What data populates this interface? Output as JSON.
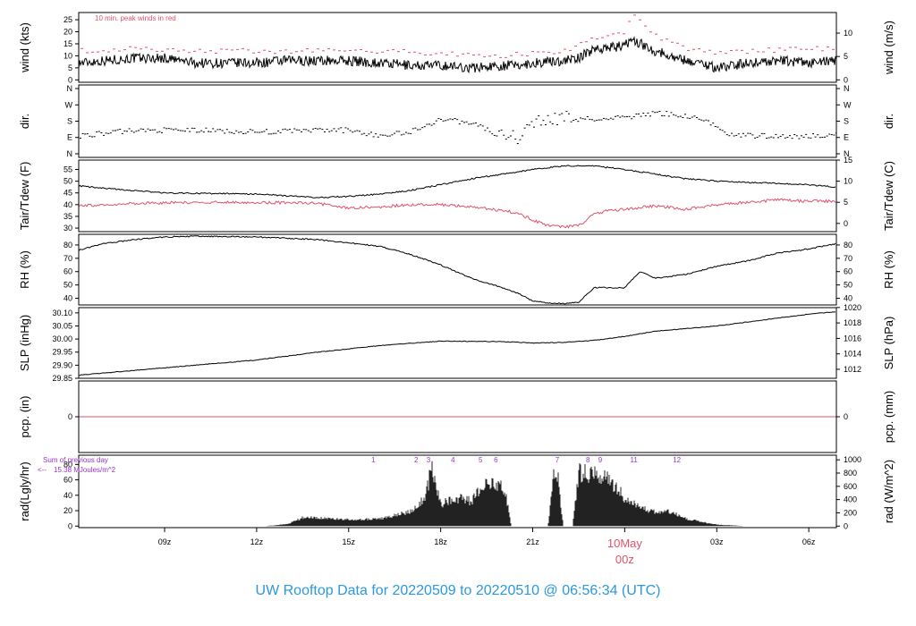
{
  "title": "UW Rooftop Data for 20220509  to  20220510 @ 06:56:34  (UTC)",
  "colors": {
    "trace": "#000000",
    "peak": "#DF536B",
    "dewpoint": "#DF536B",
    "pcp": "#DF536B",
    "annotation": "#9933CC",
    "title": "#2B98DF",
    "date_label": "#DF536B"
  },
  "x_axis": {
    "ticks": [
      "09z",
      "12z",
      "15z",
      "18z",
      "21z",
      "00z",
      "03z",
      "06z"
    ],
    "tick_hours": [
      9,
      12,
      15,
      18,
      21,
      24,
      27,
      30
    ],
    "date_label": "10May",
    "range_hours": [
      6.2,
      30.9
    ]
  },
  "chart_data": [
    {
      "type": "line",
      "panel": "wind",
      "ylabel": "wind (kts)",
      "ylabel_right": "wind (m/s)",
      "y_ticks": [
        "0",
        "5",
        "10",
        "15",
        "20",
        "25"
      ],
      "y_ticks_right": [
        "0",
        "5",
        "10"
      ],
      "ylim": [
        -1,
        28
      ],
      "annotation": "10 min. peak winds in red",
      "series": [
        {
          "name": "wind speed",
          "x": [
            6.2,
            7,
            8,
            9,
            10,
            11,
            12,
            13,
            14,
            15,
            16,
            17,
            18,
            19,
            20,
            20.5,
            21,
            22,
            22.5,
            23,
            24,
            24.2,
            25,
            26,
            26.5,
            27,
            28,
            29,
            30,
            30.9
          ],
          "y": [
            7,
            8,
            9,
            9,
            7,
            7,
            7,
            8,
            8,
            8,
            7,
            6,
            6,
            5,
            6,
            6,
            7,
            8,
            9,
            13,
            14,
            17,
            12,
            8,
            7,
            5,
            7,
            8,
            7,
            8
          ]
        },
        {
          "name": "peak gust",
          "x": [
            6.2,
            8,
            10,
            12,
            14,
            16,
            18,
            20,
            21,
            22,
            23,
            24,
            24.2,
            25,
            26,
            27,
            28,
            30,
            30.9
          ],
          "y": [
            12,
            13,
            12,
            12,
            12,
            12,
            11,
            10,
            11,
            12,
            17,
            20,
            27,
            18,
            13,
            11,
            12,
            13,
            13
          ]
        }
      ]
    },
    {
      "type": "scatter",
      "panel": "direction",
      "ylabel": "dir.",
      "ylabel_right": "dir.",
      "y_ticks": [
        "N",
        "E",
        "S",
        "W",
        "N"
      ],
      "ylim": [
        -20,
        380
      ],
      "series": [
        {
          "name": "direction (deg)",
          "x": [
            6.2,
            8,
            10,
            12,
            14,
            15,
            16,
            17,
            17.5,
            18,
            19,
            20,
            20.5,
            21,
            22,
            23,
            24,
            25,
            26,
            26.5,
            27.5,
            29,
            30,
            30.9
          ],
          "y": [
            100,
            130,
            130,
            120,
            130,
            130,
            100,
            120,
            160,
            190,
            170,
            100,
            90,
            170,
            200,
            190,
            200,
            225,
            210,
            190,
            100,
            100,
            95,
            110
          ]
        }
      ]
    },
    {
      "type": "line",
      "panel": "temperature",
      "ylabel": "Tair/Tdew (F)",
      "ylabel_right": "Tair/Tdew (C)",
      "y_ticks": [
        "30",
        "35",
        "40",
        "45",
        "50",
        "55"
      ],
      "y_ticks_right": [
        "0",
        "5",
        "10",
        "15"
      ],
      "ylim": [
        28.5,
        59
      ],
      "series": [
        {
          "name": "air temperature",
          "x": [
            6.2,
            7,
            9,
            12,
            14,
            15,
            16,
            17,
            18,
            19,
            20,
            21,
            22,
            23,
            24,
            25,
            26,
            27,
            28,
            29,
            30,
            30.9
          ],
          "y": [
            48,
            47,
            45,
            44.5,
            43,
            43.5,
            44.5,
            46,
            48.5,
            51,
            53,
            55,
            56.5,
            56.5,
            55,
            53,
            51,
            50,
            49.5,
            49,
            48.5,
            47.5
          ]
        },
        {
          "name": "dew point",
          "x": [
            6.2,
            8,
            10,
            12,
            14,
            15,
            16,
            17,
            18,
            19,
            20,
            20.5,
            21,
            21.5,
            22,
            22.5,
            23,
            23.5,
            24,
            25,
            26,
            27,
            28,
            29,
            30,
            30.9
          ],
          "y": [
            39.5,
            40.5,
            41,
            41,
            40.5,
            38.5,
            39,
            40,
            40,
            39,
            37.5,
            36.5,
            33.5,
            31,
            30.5,
            31,
            36,
            37.5,
            38,
            39.5,
            38,
            40,
            41,
            42,
            41.5,
            41.5
          ]
        }
      ]
    },
    {
      "type": "line",
      "panel": "humidity",
      "ylabel": "RH (%)",
      "ylabel_right": "RH (%)",
      "y_ticks": [
        "40",
        "50",
        "60",
        "70",
        "80"
      ],
      "ylim": [
        35,
        88
      ],
      "series": [
        {
          "name": "relative humidity",
          "x": [
            6.2,
            7,
            8,
            9,
            10,
            12,
            14,
            16,
            17,
            18,
            19,
            20,
            20.5,
            21,
            21.5,
            22,
            22.5,
            23,
            24,
            24.5,
            25,
            26,
            27,
            28,
            29,
            30,
            30.9
          ],
          "y": [
            76,
            81,
            84,
            86,
            86.5,
            86,
            84,
            79,
            73,
            65,
            55,
            48,
            44,
            38,
            36.5,
            36,
            37,
            48,
            48,
            60,
            55,
            58,
            64,
            68,
            74,
            77,
            81
          ]
        }
      ]
    },
    {
      "type": "line",
      "panel": "pressure",
      "ylabel": "SLP (inHg)",
      "ylabel_right": "SLP (hPa)",
      "y_ticks": [
        "29.85",
        "29.90",
        "29.95",
        "30.00",
        "30.05",
        "30.10"
      ],
      "y_ticks_right": [
        "1012",
        "1014",
        "1016",
        "1018",
        "1020"
      ],
      "ylim": [
        29.85,
        30.12
      ],
      "series": [
        {
          "name": "sea level pressure",
          "x": [
            6.2,
            8,
            10,
            12,
            14,
            16,
            18,
            20,
            21,
            22,
            23,
            24,
            25,
            26,
            27,
            28,
            29,
            30,
            30.9
          ],
          "y": [
            29.862,
            29.88,
            29.9,
            29.92,
            29.95,
            29.975,
            29.992,
            29.99,
            29.985,
            29.987,
            29.995,
            30.01,
            30.03,
            30.04,
            30.05,
            30.065,
            30.08,
            30.095,
            30.105
          ]
        }
      ]
    },
    {
      "type": "line",
      "panel": "precipitation",
      "ylabel": "pcp. (in)",
      "ylabel_right": "pcp. (mm)",
      "y_ticks": [
        "0"
      ],
      "y_ticks_right": [
        "0"
      ],
      "ylim": [
        -1,
        1
      ],
      "series": [
        {
          "name": "precipitation",
          "x": [
            6.2,
            30.9
          ],
          "y": [
            0,
            0
          ]
        }
      ]
    },
    {
      "type": "area",
      "panel": "radiation",
      "ylabel": "rad(Lgly/hr)",
      "ylabel_right": "rad (W/m^2)",
      "y_ticks": [
        "0",
        "20",
        "40",
        "60",
        "80"
      ],
      "y_ticks_right": [
        "0",
        "200",
        "400",
        "600",
        "800",
        "1000"
      ],
      "ylim": [
        -2,
        92
      ],
      "previous_day_label": "Sum of previous day",
      "previous_day_value": "15.38 MJoules/m^2",
      "previous_day_arrow": "<--",
      "event_labels": [
        "1",
        "2",
        "3",
        "4",
        "5",
        "6",
        "7",
        "8",
        "9",
        "11",
        "12"
      ],
      "event_hours": [
        15.8,
        17.2,
        17.6,
        18.4,
        19.3,
        19.8,
        21.8,
        22.8,
        23.2,
        24.3,
        25.7
      ],
      "series": [
        {
          "name": "solar radiation",
          "x": [
            12.2,
            12.6,
            13,
            13.5,
            14,
            14.5,
            15,
            16,
            16.5,
            17,
            17.5,
            17.7,
            18,
            18.5,
            19,
            19.5,
            20,
            20.2,
            20.3,
            20.4,
            20.5,
            21,
            21.2,
            21.5,
            21.7,
            21.8,
            22,
            22.3,
            22.5,
            23,
            23.5,
            24,
            24.5,
            25,
            25.5,
            26,
            27,
            28
          ],
          "y": [
            0,
            1,
            3,
            12,
            12,
            10,
            9,
            10,
            15,
            20,
            40,
            82,
            30,
            40,
            35,
            60,
            58,
            30,
            0,
            0,
            0,
            0,
            0,
            0,
            75,
            75,
            0,
            0,
            75,
            72,
            65,
            40,
            25,
            20,
            20,
            10,
            2,
            0
          ]
        }
      ]
    }
  ]
}
